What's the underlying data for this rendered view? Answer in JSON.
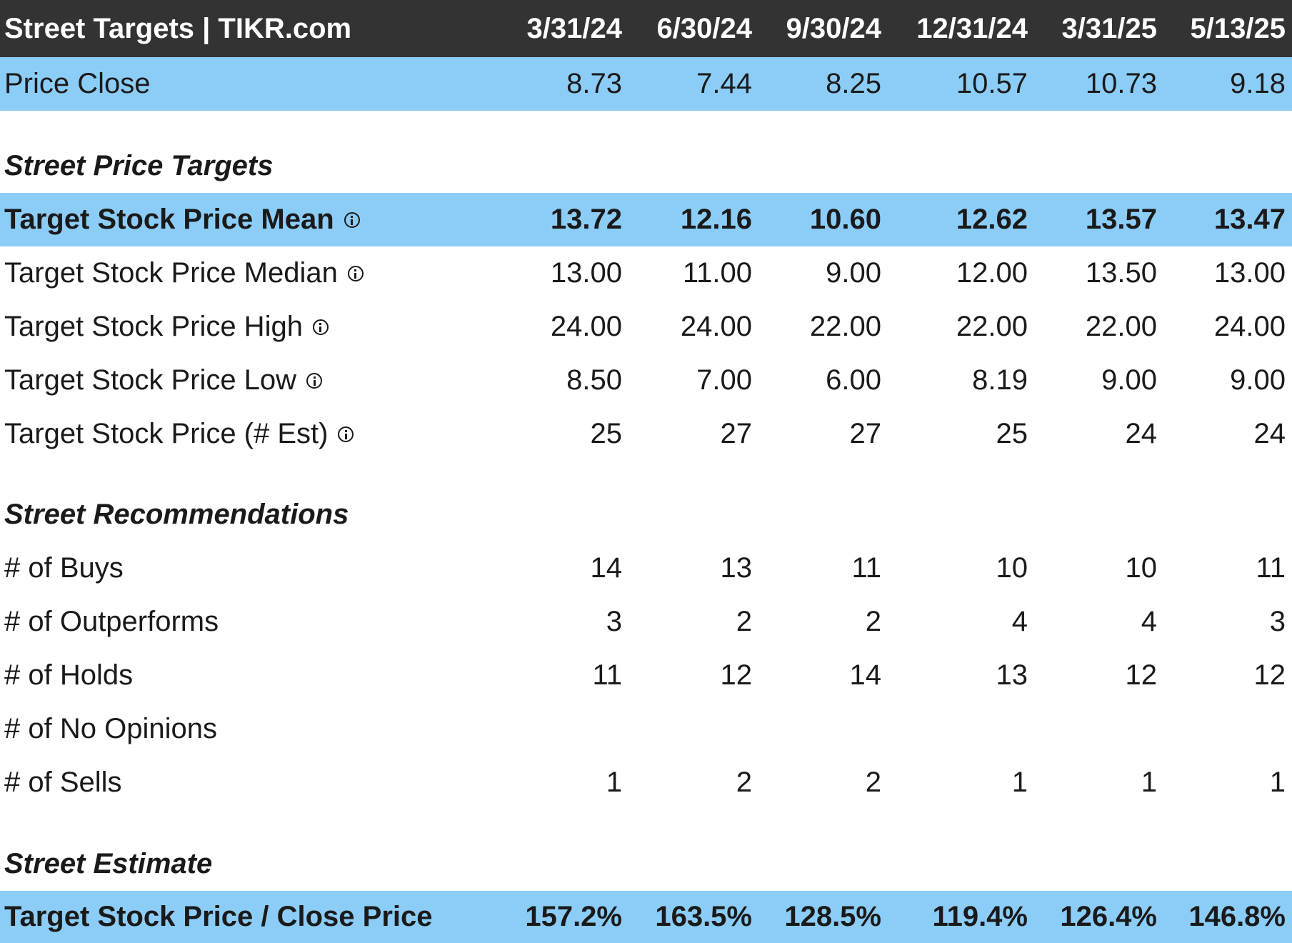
{
  "header": {
    "title": "Street Targets | TIKR.com",
    "dates": [
      "3/31/24",
      "6/30/24",
      "9/30/24",
      "12/31/24",
      "3/31/25",
      "5/13/25"
    ]
  },
  "price_close": {
    "label": "Price Close",
    "values": [
      "8.73",
      "7.44",
      "8.25",
      "10.57",
      "10.73",
      "9.18"
    ]
  },
  "sections": {
    "price_targets": "Street Price Targets",
    "recommendations": "Street Recommendations",
    "estimate": "Street Estimate"
  },
  "targets": [
    {
      "label": "Target Stock Price Mean",
      "values": [
        "13.72",
        "12.16",
        "10.60",
        "12.62",
        "13.57",
        "13.47"
      ]
    },
    {
      "label": "Target Stock Price Median",
      "values": [
        "13.00",
        "11.00",
        "9.00",
        "12.00",
        "13.50",
        "13.00"
      ]
    },
    {
      "label": "Target Stock Price High",
      "values": [
        "24.00",
        "24.00",
        "22.00",
        "22.00",
        "22.00",
        "24.00"
      ]
    },
    {
      "label": "Target Stock Price Low",
      "values": [
        "8.50",
        "7.00",
        "6.00",
        "8.19",
        "9.00",
        "9.00"
      ]
    },
    {
      "label": "Target Stock Price (# Est)",
      "values": [
        "25",
        "27",
        "27",
        "25",
        "24",
        "24"
      ]
    }
  ],
  "recommendations": [
    {
      "label": "# of Buys",
      "values": [
        "14",
        "13",
        "11",
        "10",
        "10",
        "11"
      ]
    },
    {
      "label": "# of Outperforms",
      "values": [
        "3",
        "2",
        "2",
        "4",
        "4",
        "3"
      ]
    },
    {
      "label": "# of Holds",
      "values": [
        "11",
        "12",
        "14",
        "13",
        "12",
        "12"
      ]
    },
    {
      "label": "# of No Opinions",
      "values": [
        "",
        "",
        "",
        "",
        "",
        ""
      ]
    },
    {
      "label": "# of Sells",
      "values": [
        "1",
        "2",
        "2",
        "1",
        "1",
        "1"
      ]
    }
  ],
  "estimate": {
    "label": "Target Stock Price / Close Price",
    "values": [
      "157.2%",
      "163.5%",
      "128.5%",
      "119.4%",
      "126.4%",
      "146.8%"
    ]
  },
  "colors": {
    "header_bg": "#333333",
    "highlight_bg": "#8ccdf8"
  }
}
